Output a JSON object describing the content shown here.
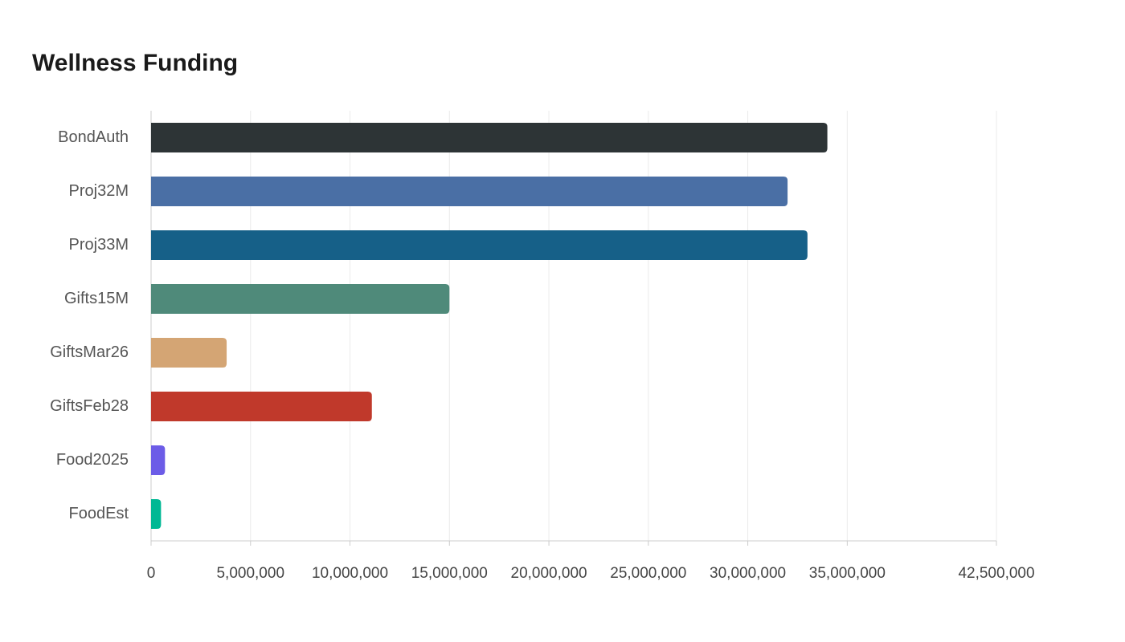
{
  "chart_data": {
    "type": "bar",
    "orientation": "horizontal",
    "title": "Wellness Funding",
    "categories": [
      "BondAuth",
      "Proj32M",
      "Proj33M",
      "Gifts15M",
      "GiftsMar26",
      "GiftsFeb28",
      "Food2025",
      "FoodEst"
    ],
    "values": [
      34000000,
      32000000,
      33000000,
      15000000,
      3800000,
      11100000,
      700000,
      500000
    ],
    "colors": [
      "#2d3436",
      "#4a6fa5",
      "#166088",
      "#4f8a7a",
      "#d4a574",
      "#c0392b",
      "#6c5ce7",
      "#00b894"
    ],
    "xlim": [
      0,
      42500000
    ],
    "xticks": [
      0,
      {
        "value": 5000000,
        "label": "5,000,000"
      },
      {
        "value": 10000000,
        "label": "10,000,000"
      },
      {
        "value": 15000000,
        "label": "15,000,000"
      },
      {
        "value": 20000000,
        "label": "20,000,000"
      },
      {
        "value": 25000000,
        "label": "25,000,000"
      },
      {
        "value": 30000000,
        "label": "30,000,000"
      },
      {
        "value": 35000000,
        "label": "35,000,000"
      },
      {
        "value": 42500000,
        "label": "42,500,000"
      }
    ],
    "grid": true
  }
}
